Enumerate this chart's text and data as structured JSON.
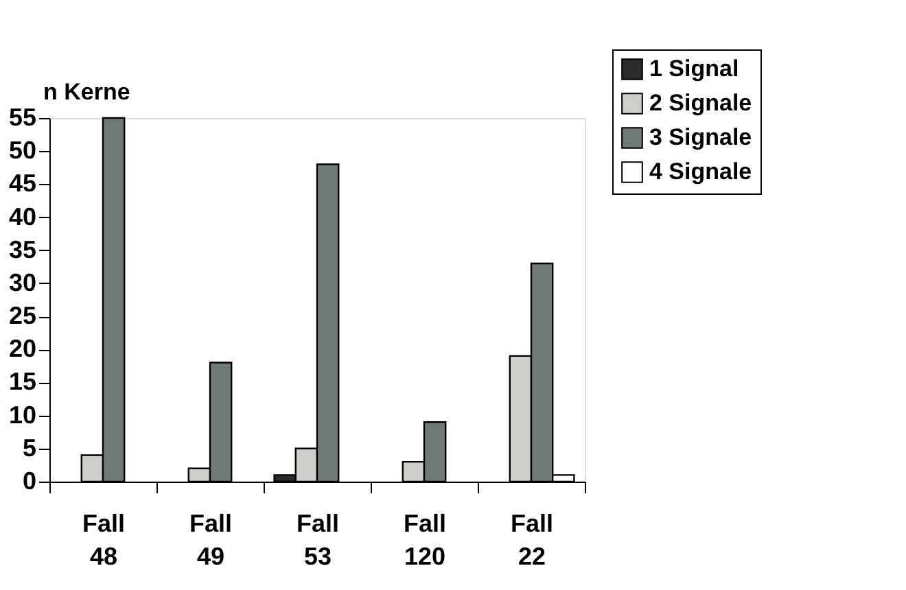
{
  "chart_data": {
    "type": "bar",
    "ylabel": "n Kerne",
    "categories": [
      "Fall 48",
      "Fall 49",
      "Fall 53",
      "Fall 120",
      "Fall 22"
    ],
    "series": [
      {
        "name": "1 Signal",
        "color": "#2a2a2a",
        "values": [
          0,
          0,
          1,
          0,
          0
        ]
      },
      {
        "name": "2 Signale",
        "color": "#cdd0ca",
        "values": [
          4,
          2,
          5,
          3,
          19
        ]
      },
      {
        "name": "3 Signale",
        "color": "#6f7a77",
        "values": [
          55,
          18,
          48,
          9,
          33
        ]
      },
      {
        "name": "4 Signale",
        "color": "#ffffff",
        "values": [
          0,
          0,
          0,
          0,
          1
        ]
      }
    ],
    "ylim": [
      0,
      55
    ],
    "yticks": [
      0,
      5,
      10,
      15,
      20,
      25,
      30,
      35,
      40,
      45,
      50,
      55
    ],
    "grid": false,
    "legend": "top right"
  }
}
